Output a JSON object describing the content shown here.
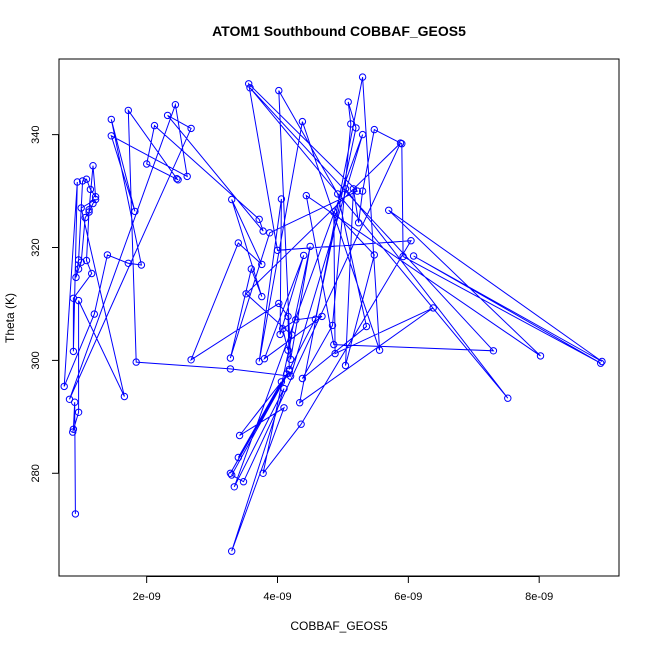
{
  "chart_data": {
    "type": "line",
    "title": "ATOM1 Southbound COBBAF_GEOS5",
    "xlabel": "COBBAF_GEOS5",
    "ylabel": "Theta (K)",
    "xlim": [
      6.6e-10,
      9.22e-09
    ],
    "ylim": [
      261.8,
      353.4
    ],
    "x_ticks": [
      2e-09,
      4e-09,
      6e-09,
      8e-09
    ],
    "x_tick_labels": [
      "2e-09",
      "4e-09",
      "6e-09",
      "8e-09"
    ],
    "y_ticks": [
      280,
      300,
      320,
      340
    ],
    "y_tick_labels": [
      "280",
      "300",
      "320",
      "340"
    ],
    "grid": false,
    "markers": "open-circle",
    "series": [
      {
        "color": "#0000ff",
        "points": [
          [
            9.1e-10,
            272.8
          ],
          [
            9e-10,
            292.6
          ],
          [
            8.8e-10,
            287.8
          ],
          [
            8.7e-10,
            287.3
          ],
          [
            9.6e-10,
            290.8
          ],
          [
            9.6e-10,
            310.6
          ],
          [
            1.66e-09,
            293.6
          ],
          [
            1e-09,
            327.0
          ],
          [
            1.22e-09,
            328.5
          ],
          [
            1.18e-09,
            327.8
          ],
          [
            1.12e-09,
            326.3
          ],
          [
            1.06e-09,
            325.3
          ],
          [
            1e-09,
            317.4
          ],
          [
            9.6e-10,
            316.2
          ],
          [
            9.2e-10,
            314.7
          ],
          [
            9.6e-10,
            317.8
          ],
          [
            1.02e-09,
            331.8
          ],
          [
            1.08e-09,
            332.1
          ],
          [
            1.14e-09,
            330.3
          ],
          [
            1.22e-09,
            329.0
          ],
          [
            1.18e-09,
            334.5
          ],
          [
            1.12e-09,
            326.7
          ],
          [
            1.08e-09,
            317.7
          ],
          [
            1.16e-09,
            315.4
          ],
          [
            8.8e-10,
            311.0
          ],
          [
            8.8e-10,
            301.6
          ],
          [
            9.4e-10,
            331.6
          ],
          [
            7.4e-10,
            295.4
          ],
          [
            1.2e-09,
            308.2
          ],
          [
            1.4e-09,
            318.7
          ],
          [
            1.72e-09,
            317.2
          ],
          [
            1.92e-09,
            316.9
          ],
          [
            1.46e-09,
            342.7
          ],
          [
            1.82e-09,
            326.4
          ],
          [
            1.46e-09,
            339.8
          ],
          [
            2.62e-09,
            332.6
          ],
          [
            2.44e-09,
            345.3
          ],
          [
            8.2e-10,
            293.1
          ],
          [
            2.68e-09,
            341.1
          ],
          [
            2.32e-09,
            343.4
          ],
          [
            3.78e-09,
            322.9
          ],
          [
            3.72e-09,
            325.0
          ],
          [
            2.12e-09,
            341.6
          ],
          [
            2e-09,
            334.8
          ],
          [
            2.48e-09,
            332.0
          ],
          [
            2.46e-09,
            332.2
          ],
          [
            1.72e-09,
            344.3
          ],
          [
            1.84e-09,
            299.7
          ],
          [
            3.28e-09,
            298.5
          ],
          [
            4.2e-09,
            297.2
          ],
          [
            5.3e-09,
            340.0
          ],
          [
            3.34e-09,
            277.6
          ],
          [
            4.1e-09,
            295.0
          ],
          [
            3.3e-09,
            266.2
          ],
          [
            4.1e-09,
            291.6
          ],
          [
            3.42e-09,
            286.7
          ],
          [
            4.06e-09,
            296.2
          ],
          [
            3.4e-09,
            282.8
          ],
          [
            4.14e-09,
            297.6
          ],
          [
            3.28e-09,
            280.0
          ],
          [
            4.18e-09,
            298.1
          ],
          [
            3.3e-09,
            279.7
          ],
          [
            3.48e-09,
            278.5
          ],
          [
            5.88e-09,
            338.5
          ],
          [
            3.52e-09,
            311.8
          ],
          [
            4.22e-09,
            304.5
          ],
          [
            3.78e-09,
            280.0
          ],
          [
            4.36e-09,
            288.7
          ],
          [
            6.04e-09,
            321.2
          ],
          [
            4e-09,
            319.5
          ],
          [
            3.56e-09,
            349.0
          ],
          [
            5.22e-09,
            330.0
          ],
          [
            3.88e-09,
            322.6
          ],
          [
            3.28e-09,
            300.4
          ],
          [
            3.6e-09,
            316.2
          ],
          [
            3.76e-09,
            311.3
          ],
          [
            3.3e-09,
            328.5
          ],
          [
            3.76e-09,
            317.0
          ],
          [
            3.4e-09,
            320.8
          ],
          [
            2.68e-09,
            300.1
          ],
          [
            4.02e-09,
            310.1
          ],
          [
            4.16e-09,
            307.8
          ],
          [
            4.18e-09,
            298.4
          ],
          [
            4.58e-09,
            307.3
          ],
          [
            5.2e-09,
            341.2
          ],
          [
            5.08e-09,
            345.8
          ],
          [
            5.12e-09,
            341.9
          ],
          [
            4.84e-09,
            306.2
          ],
          [
            4.38e-09,
            296.8
          ],
          [
            5.36e-09,
            306.0
          ],
          [
            4.92e-09,
            329.5
          ],
          [
            4.02e-09,
            347.8
          ],
          [
            4.2e-09,
            300.2
          ],
          [
            4.5e-09,
            320.2
          ],
          [
            4.16e-09,
            301.8
          ],
          [
            4.08e-09,
            305.6
          ],
          [
            4.28e-09,
            307.2
          ],
          [
            4.68e-09,
            307.8
          ],
          [
            3.8e-09,
            300.3
          ],
          [
            4.4e-09,
            318.6
          ],
          [
            4.04e-09,
            304.6
          ],
          [
            4.06e-09,
            328.6
          ],
          [
            3.72e-09,
            299.8
          ],
          [
            4.38e-09,
            342.3
          ],
          [
            5.56e-09,
            301.8
          ],
          [
            5.3e-09,
            350.2
          ],
          [
            4.34e-09,
            292.5
          ],
          [
            6.38e-09,
            309.3
          ],
          [
            4.88e-09,
            301.2
          ],
          [
            4.86e-09,
            326.3
          ],
          [
            5.48e-09,
            318.7
          ],
          [
            5.04e-09,
            299.1
          ],
          [
            5.16e-09,
            330.4
          ],
          [
            5.24e-09,
            324.4
          ],
          [
            5.3e-09,
            330.0
          ],
          [
            5.48e-09,
            340.9
          ],
          [
            5.9e-09,
            338.4
          ],
          [
            5.92e-09,
            318.4
          ],
          [
            8.94e-09,
            299.5
          ],
          [
            6.08e-09,
            318.5
          ],
          [
            8.96e-09,
            299.8
          ],
          [
            5.7e-09,
            326.6
          ],
          [
            8.02e-09,
            300.8
          ],
          [
            4.44e-09,
            329.2
          ],
          [
            4.86e-09,
            302.8
          ],
          [
            7.3e-09,
            301.7
          ],
          [
            3.58e-09,
            348.3
          ],
          [
            7.52e-09,
            293.3
          ],
          [
            5.04e-09,
            330.4
          ]
        ]
      }
    ]
  }
}
